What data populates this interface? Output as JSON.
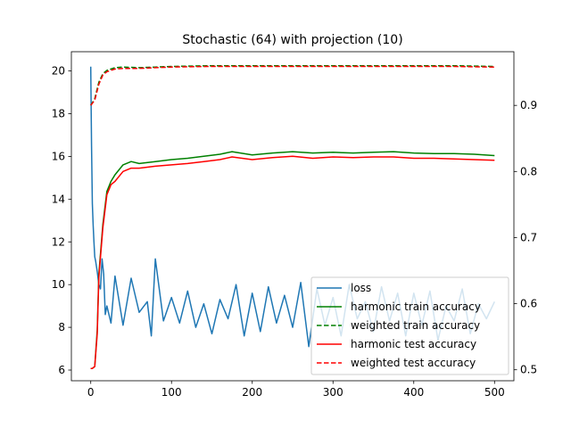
{
  "chart_data": {
    "type": "line",
    "title": "Stochastic (64) with projection (10)",
    "xlabel": "",
    "ylabel_left": "",
    "ylabel_right": "",
    "xlim": [
      -24,
      524
    ],
    "ylim_left": [
      5.5,
      20.9
    ],
    "ylim_right": [
      0.4834,
      0.9812
    ],
    "x_ticks": [
      0,
      100,
      200,
      300,
      400,
      500
    ],
    "y_left_ticks": [
      6,
      8,
      10,
      12,
      14,
      16,
      18,
      20
    ],
    "y_right_ticks": [
      0.5,
      0.6,
      0.7,
      0.8,
      0.9
    ],
    "legend_position": "lower right",
    "grid": false,
    "series": [
      {
        "name": "loss",
        "axis": "left",
        "color": "#1f77b4",
        "style": "solid",
        "x": [
          0,
          1,
          2,
          3,
          4,
          5,
          6,
          8,
          10,
          12,
          14,
          16,
          18,
          20,
          25,
          30,
          40,
          50,
          60,
          70,
          75,
          80,
          90,
          100,
          110,
          120,
          130,
          140,
          150,
          160,
          170,
          180,
          190,
          200,
          210,
          220,
          230,
          240,
          250,
          260,
          270,
          280,
          290,
          300,
          310,
          320,
          330,
          340,
          350,
          360,
          370,
          380,
          390,
          400,
          410,
          420,
          430,
          440,
          450,
          460,
          470,
          480,
          490,
          500
        ],
        "values": [
          20.2,
          16.5,
          13.8,
          12.8,
          12.0,
          11.3,
          11.1,
          10.6,
          10.0,
          9.8,
          11.2,
          10.5,
          8.6,
          9.0,
          8.2,
          10.4,
          8.1,
          10.3,
          8.7,
          9.2,
          7.6,
          11.2,
          8.3,
          9.4,
          8.2,
          9.7,
          8.0,
          9.1,
          7.7,
          9.3,
          8.4,
          10.0,
          7.6,
          9.6,
          7.8,
          9.9,
          8.2,
          9.5,
          8.0,
          10.1,
          7.1,
          9.8,
          8.1,
          9.4,
          7.6,
          10.0,
          8.4,
          9.2,
          7.8,
          9.9,
          8.3,
          9.6,
          7.6,
          9.6,
          8.1,
          9.7,
          7.4,
          9.0,
          8.3,
          9.8,
          7.7,
          9.1,
          8.4,
          9.2
        ]
      },
      {
        "name": "harmonic train accuracy",
        "axis": "right",
        "color": "#008000",
        "style": "solid",
        "x": [
          0,
          2,
          5,
          8,
          10,
          15,
          20,
          25,
          30,
          40,
          50,
          60,
          80,
          100,
          120,
          140,
          160,
          175,
          200,
          225,
          250,
          275,
          300,
          325,
          350,
          375,
          400,
          425,
          450,
          475,
          500
        ],
        "values": [
          0.502,
          0.502,
          0.505,
          0.56,
          0.645,
          0.72,
          0.77,
          0.785,
          0.795,
          0.81,
          0.815,
          0.812,
          0.815,
          0.818,
          0.82,
          0.823,
          0.826,
          0.83,
          0.825,
          0.828,
          0.83,
          0.828,
          0.829,
          0.828,
          0.829,
          0.83,
          0.828,
          0.827,
          0.827,
          0.826,
          0.824
        ]
      },
      {
        "name": "weighted train accuracy",
        "axis": "right",
        "color": "#008000",
        "style": "dashed",
        "x": [
          0,
          5,
          10,
          15,
          20,
          30,
          40,
          60,
          80,
          100,
          150,
          200,
          250,
          300,
          350,
          400,
          450,
          500
        ],
        "values": [
          0.9,
          0.91,
          0.935,
          0.948,
          0.953,
          0.957,
          0.958,
          0.957,
          0.958,
          0.959,
          0.96,
          0.96,
          0.96,
          0.96,
          0.96,
          0.96,
          0.96,
          0.959
        ]
      },
      {
        "name": "harmonic test accuracy",
        "axis": "right",
        "color": "#ff0000",
        "style": "solid",
        "x": [
          0,
          2,
          5,
          8,
          10,
          15,
          20,
          25,
          30,
          40,
          50,
          60,
          80,
          100,
          120,
          140,
          160,
          175,
          200,
          225,
          250,
          275,
          300,
          325,
          350,
          375,
          400,
          425,
          450,
          475,
          500
        ],
        "values": [
          0.502,
          0.502,
          0.505,
          0.555,
          0.64,
          0.715,
          0.765,
          0.78,
          0.785,
          0.8,
          0.805,
          0.805,
          0.808,
          0.81,
          0.812,
          0.815,
          0.818,
          0.822,
          0.818,
          0.821,
          0.823,
          0.82,
          0.822,
          0.821,
          0.822,
          0.822,
          0.82,
          0.82,
          0.819,
          0.818,
          0.817
        ]
      },
      {
        "name": "weighted test accuracy",
        "axis": "right",
        "color": "#ff0000",
        "style": "dashed",
        "x": [
          0,
          5,
          10,
          15,
          20,
          30,
          40,
          60,
          80,
          100,
          150,
          200,
          250,
          300,
          350,
          400,
          450,
          500
        ],
        "values": [
          0.9,
          0.908,
          0.932,
          0.946,
          0.951,
          0.955,
          0.956,
          0.956,
          0.957,
          0.958,
          0.959,
          0.959,
          0.959,
          0.959,
          0.959,
          0.959,
          0.959,
          0.958
        ]
      }
    ]
  }
}
